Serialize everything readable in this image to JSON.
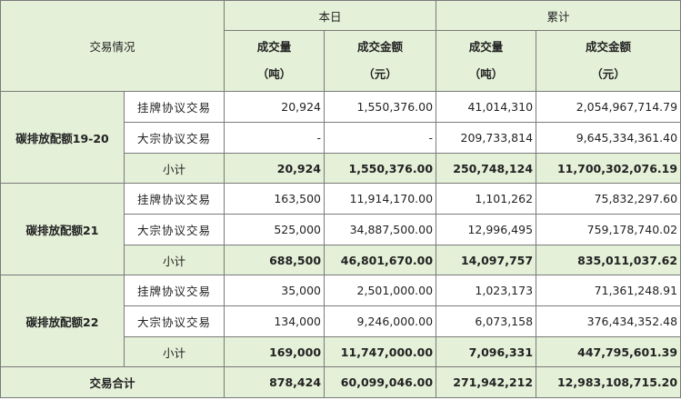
{
  "table": {
    "corner_label": "交易情况",
    "group_today": "本日",
    "group_total": "累计",
    "col_volume": "成交量",
    "col_amount": "成交金额",
    "unit_ton": "（吨）",
    "unit_yuan": "（元）",
    "sections": [
      {
        "name": "碳排放配额19-20",
        "rows": [
          {
            "type": "挂牌协议交易",
            "today_volume": "20,924",
            "today_amount": "1,550,376.00",
            "total_volume": "41,014,310",
            "total_amount": "2,054,967,714.79"
          },
          {
            "type": "大宗协议交易",
            "today_volume": "-",
            "today_amount": "-",
            "total_volume": "209,733,814",
            "total_amount": "9,645,334,361.40"
          },
          {
            "type": "小计",
            "today_volume": "20,924",
            "today_amount": "1,550,376.00",
            "total_volume": "250,748,124",
            "total_amount": "11,700,302,076.19"
          }
        ]
      },
      {
        "name": "碳排放配额21",
        "rows": [
          {
            "type": "挂牌协议交易",
            "today_volume": "163,500",
            "today_amount": "11,914,170.00",
            "total_volume": "1,101,262",
            "total_amount": "75,832,297.60"
          },
          {
            "type": "大宗协议交易",
            "today_volume": "525,000",
            "today_amount": "34,887,500.00",
            "total_volume": "12,996,495",
            "total_amount": "759,178,740.02"
          },
          {
            "type": "小计",
            "today_volume": "688,500",
            "today_amount": "46,801,670.00",
            "total_volume": "14,097,757",
            "total_amount": "835,011,037.62"
          }
        ]
      },
      {
        "name": "碳排放配额22",
        "rows": [
          {
            "type": "挂牌协议交易",
            "today_volume": "35,000",
            "today_amount": "2,501,000.00",
            "total_volume": "1,023,173",
            "total_amount": "71,361,248.91"
          },
          {
            "type": "大宗协议交易",
            "today_volume": "134,000",
            "today_amount": "9,246,000.00",
            "total_volume": "6,073,158",
            "total_amount": "376,434,352.48"
          },
          {
            "type": "小计",
            "today_volume": "169,000",
            "today_amount": "11,747,000.00",
            "total_volume": "7,096,331",
            "total_amount": "447,795,601.39"
          }
        ]
      }
    ],
    "grand_total": {
      "label": "交易合计",
      "today_volume": "878,424",
      "today_amount": "60,099,046.00",
      "total_volume": "271,942,212",
      "total_amount": "12,983,108,715.20"
    }
  }
}
